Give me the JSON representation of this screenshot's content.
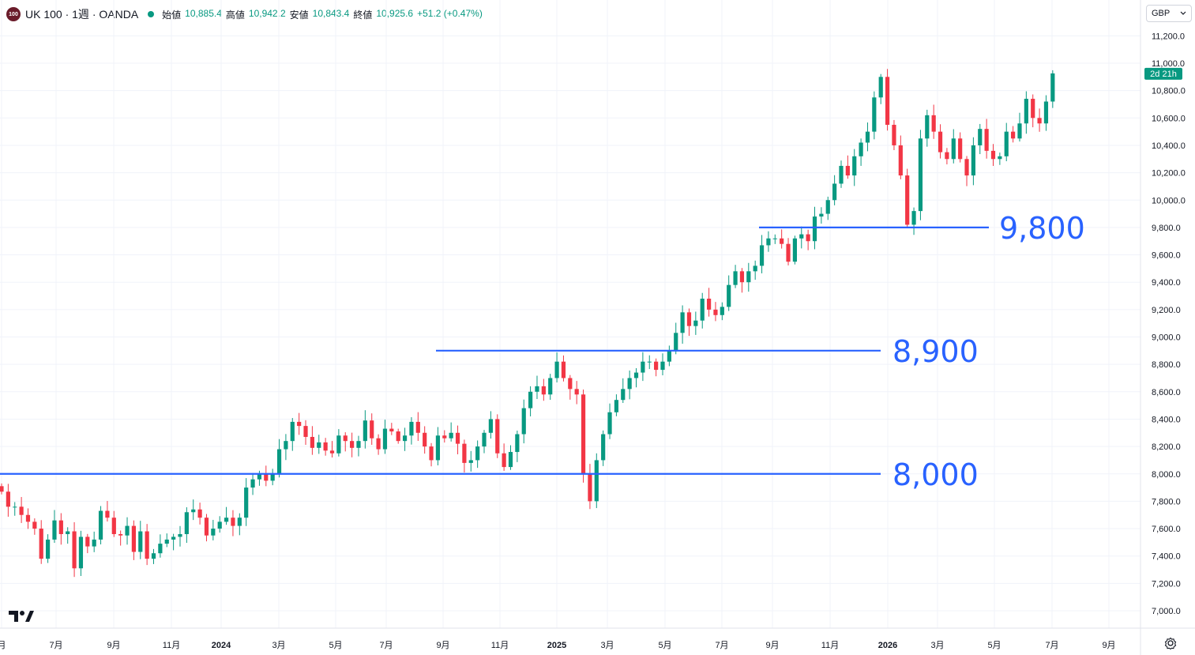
{
  "header": {
    "symbol_badge": "100",
    "title": "UK 100 · 1週 · OANDA",
    "ohlc": [
      {
        "label": "始値",
        "value": "10,885.4"
      },
      {
        "label": "高値",
        "value": "10,942.2"
      },
      {
        "label": "安値",
        "value": "10,843.4"
      },
      {
        "label": "終値",
        "value": "10,925.6"
      }
    ],
    "change": "+51.2 (+0.47%)"
  },
  "currency_selector": {
    "label": "GBP",
    "icon": "chevron-down-icon"
  },
  "countdown_label": "2d 21h",
  "icons": {
    "logo": "tradingview-logo-icon",
    "settings": "settings-icon"
  },
  "colors": {
    "up": "#089981",
    "down": "#f23645",
    "level_line": "#2962ff",
    "level_text": "#2962ff",
    "countdown_bg": "#089981"
  },
  "chart_data": {
    "type": "candlestick",
    "symbol": "UK 100",
    "timeframe": "1週",
    "exchange": "OANDA",
    "currency": "GBP",
    "ylim": [
      6900,
      11300
    ],
    "y_ticks": [
      "11,200.0",
      "11,000.0",
      "10,800.0",
      "10,600.0",
      "10,400.0",
      "10,200.0",
      "10,000.0",
      "9,800.0",
      "9,600.0",
      "9,400.0",
      "9,200.0",
      "9,000.0",
      "8,800.0",
      "8,600.0",
      "8,400.0",
      "8,200.0",
      "8,000.0",
      "7,800.0",
      "7,600.0",
      "7,400.0",
      "7,200.0",
      "7,000.0"
    ],
    "x_ticks": [
      "月",
      "7月",
      "9月",
      "11月",
      "2024",
      "3月",
      "5月",
      "7月",
      "9月",
      "11月",
      "2025",
      "3月",
      "5月",
      "7月",
      "9月",
      "11月",
      "2026",
      "3月",
      "5月",
      "7月",
      "9月"
    ],
    "levels": [
      {
        "value": 8000,
        "label": "8,000"
      },
      {
        "value": 8900,
        "label": "8,900"
      },
      {
        "value": 9800,
        "label": "9,800"
      }
    ],
    "last_close": 10925.6,
    "closes": [
      7870,
      7760,
      7760,
      7700,
      7650,
      7600,
      7380,
      7520,
      7660,
      7560,
      7580,
      7310,
      7540,
      7470,
      7520,
      7730,
      7680,
      7560,
      7550,
      7620,
      7430,
      7580,
      7380,
      7420,
      7490,
      7520,
      7540,
      7560,
      7720,
      7740,
      7680,
      7550,
      7600,
      7650,
      7680,
      7620,
      7680,
      7900,
      7960,
      8000,
      7950,
      8000,
      8180,
      8240,
      8380,
      8350,
      8270,
      8190,
      8230,
      8170,
      8150,
      8280,
      8240,
      8190,
      8240,
      8390,
      8260,
      8180,
      8330,
      8310,
      8240,
      8280,
      8380,
      8300,
      8200,
      8100,
      8280,
      8260,
      8300,
      8220,
      8080,
      8100,
      8200,
      8300,
      8400,
      8150,
      8050,
      8160,
      8290,
      8480,
      8600,
      8640,
      8580,
      8700,
      8820,
      8700,
      8620,
      8580,
      8000,
      7800,
      8100,
      8290,
      8450,
      8540,
      8620,
      8700,
      8740,
      8820,
      8820,
      8760,
      8820,
      8900,
      9030,
      9180,
      9080,
      9120,
      9280,
      9200,
      9160,
      9220,
      9380,
      9480,
      9400,
      9480,
      9520,
      9670,
      9720,
      9720,
      9680,
      9550,
      9720,
      9750,
      9700,
      9880,
      9900,
      10000,
      10120,
      10250,
      10180,
      10320,
      10420,
      10500,
      10750,
      10900,
      10550,
      10400,
      10180,
      9820,
      9920,
      10450,
      10620,
      10500,
      10350,
      10300,
      10450,
      10300,
      10180,
      10400,
      10520,
      10360,
      10300,
      10320,
      10500,
      10450,
      10560,
      10740,
      10600,
      10560,
      10720,
      10925.6
    ]
  }
}
